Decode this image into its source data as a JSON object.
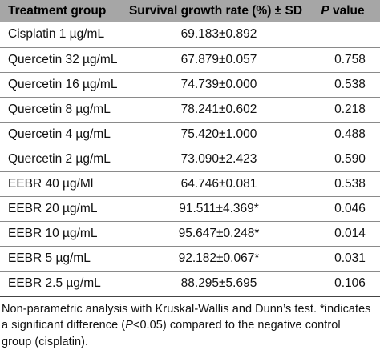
{
  "table": {
    "headers": {
      "group": "Treatment group",
      "rate": "Survival growth rate (%) ± SD",
      "p_letter": "P",
      "p_rest": " value"
    },
    "rows": [
      {
        "group": "Cisplatin 1 µg/mL",
        "rate": "69.183±0.892",
        "p": ""
      },
      {
        "group": "Quercetin 32 µg/mL",
        "rate": "67.879±0.057",
        "p": "0.758"
      },
      {
        "group": "Quercetin 16 µg/mL",
        "rate": "74.739±0.000",
        "p": "0.538"
      },
      {
        "group": "Quercetin 8 µg/mL",
        "rate": "78.241±0.602",
        "p": "0.218"
      },
      {
        "group": "Quercetin 4 µg/mL",
        "rate": "75.420±1.000",
        "p": "0.488"
      },
      {
        "group": "Quercetin 2 µg/mL",
        "rate": "73.090±2.423",
        "p": "0.590"
      },
      {
        "group": "EEBR 40 µg/Ml",
        "rate": "64.746±0.081",
        "p": "0.538"
      },
      {
        "group": "EEBR 20 µg/mL",
        "rate": "91.511±4.369*",
        "p": "0.046"
      },
      {
        "group": "EEBR 10 µg/mL",
        "rate": "95.647±0.248*",
        "p": "0.014"
      },
      {
        "group": "EEBR 5 µg/mL",
        "rate": "92.182±0.067*",
        "p": "0.031"
      },
      {
        "group": "EEBR 2.5 µg/mL",
        "rate": "88.295±5.695",
        "p": "0.106"
      }
    ]
  },
  "footnote": {
    "line1": "Non-parametric analysis with Kruskal-Wallis and Dunn’s test.  *indicates",
    "line2_before": "a significant difference (",
    "line2_ital": "P",
    "line2_after": "<0.05) compared to the negative control",
    "line3": "group  (cisplatin)."
  },
  "colors": {
    "header_bg": "#a6a6a6",
    "row_divider": "#8a8a8a"
  }
}
